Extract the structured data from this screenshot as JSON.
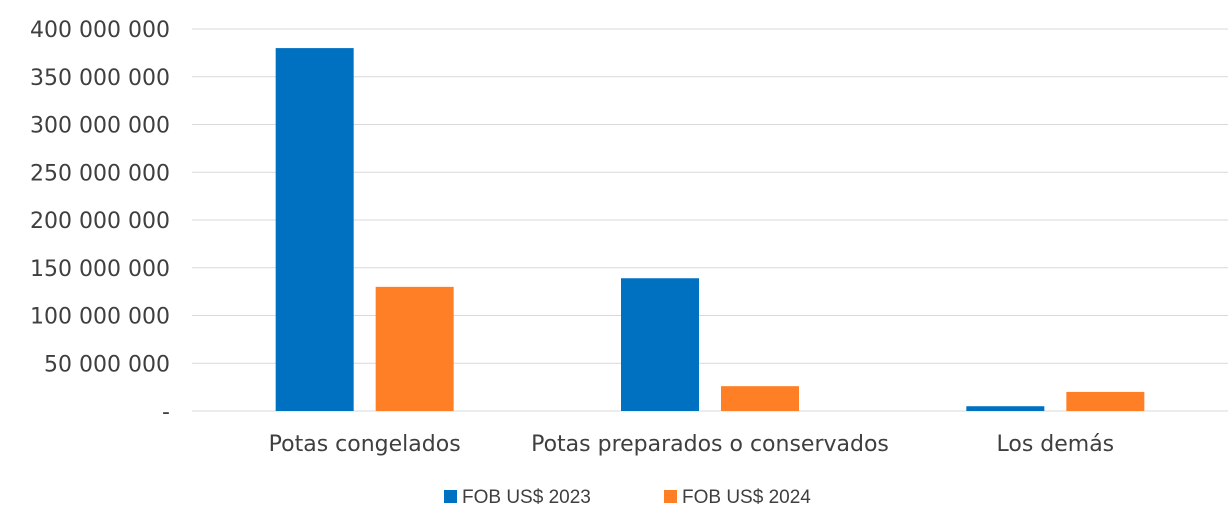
{
  "chart_data": {
    "type": "bar",
    "categories": [
      "Potas congelados",
      "Potas preparados o conservados",
      "Los demás"
    ],
    "series": [
      {
        "name": "FOB US$ 2023",
        "color": "#0070C0",
        "values": [
          380000000,
          139000000,
          5000000
        ]
      },
      {
        "name": "FOB US$ 2024",
        "color": "#FF7F27",
        "values": [
          130000000,
          26000000,
          20000000
        ]
      }
    ],
    "y_ticks": [
      {
        "value": 0,
        "label": "-"
      },
      {
        "value": 50000000,
        "label": "50 000 000"
      },
      {
        "value": 100000000,
        "label": "100 000 000"
      },
      {
        "value": 150000000,
        "label": "150 000 000"
      },
      {
        "value": 200000000,
        "label": "200 000 000"
      },
      {
        "value": 250000000,
        "label": "250 000 000"
      },
      {
        "value": 300000000,
        "label": "300 000 000"
      },
      {
        "value": 350000000,
        "label": "350 000 000"
      },
      {
        "value": 400000000,
        "label": "400 000 000"
      }
    ],
    "ylim": [
      0,
      400000000
    ],
    "grid": true,
    "legend_position": "bottom-center"
  }
}
